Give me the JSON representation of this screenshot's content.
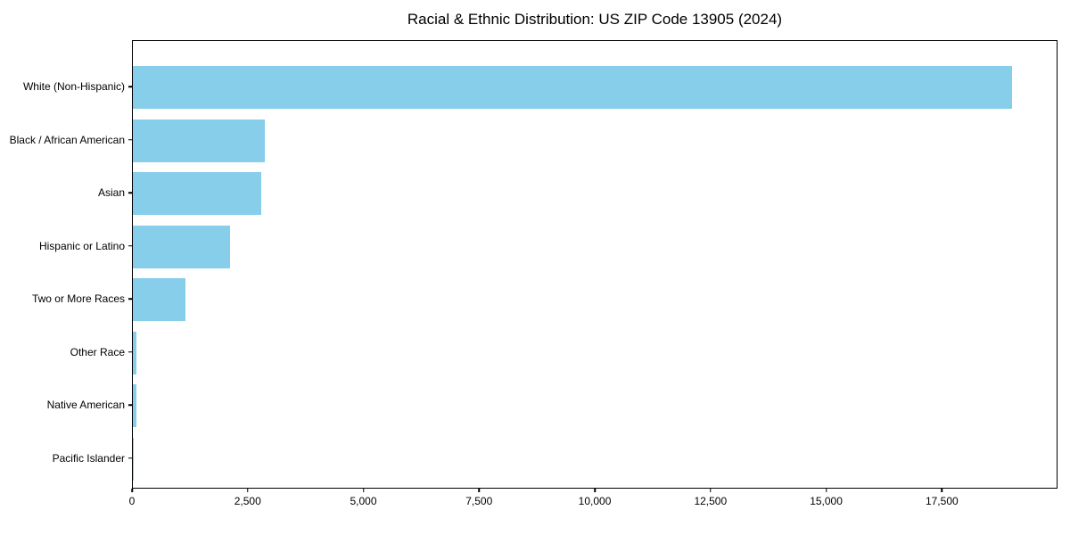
{
  "figure": {
    "background": "#ffffff",
    "text_color": "#000000"
  },
  "chart_data": {
    "type": "bar",
    "orientation": "horizontal",
    "title": "Racial & Ethnic Distribution: US ZIP Code 13905 (2024)",
    "xlabel": "",
    "ylabel": "",
    "categories": [
      "White (Non-Hispanic)",
      "Black / African American",
      "Asian",
      "Hispanic or Latino",
      "Two or More Races",
      "Other Race",
      "Native American",
      "Pacific Islander"
    ],
    "values": [
      19000,
      2850,
      2770,
      2100,
      1140,
      75,
      70,
      5
    ],
    "bar_color": "#87CEEB",
    "xlim": [
      0,
      19960
    ],
    "x_ticks": [
      {
        "value": 0,
        "label": "0"
      },
      {
        "value": 2500,
        "label": "2,500"
      },
      {
        "value": 5000,
        "label": "5,000"
      },
      {
        "value": 7500,
        "label": "7,500"
      },
      {
        "value": 10000,
        "label": "10,000"
      },
      {
        "value": 12500,
        "label": "12,500"
      },
      {
        "value": 15000,
        "label": "15,000"
      },
      {
        "value": 17500,
        "label": "17,500"
      }
    ],
    "grid": false,
    "legend": null
  }
}
